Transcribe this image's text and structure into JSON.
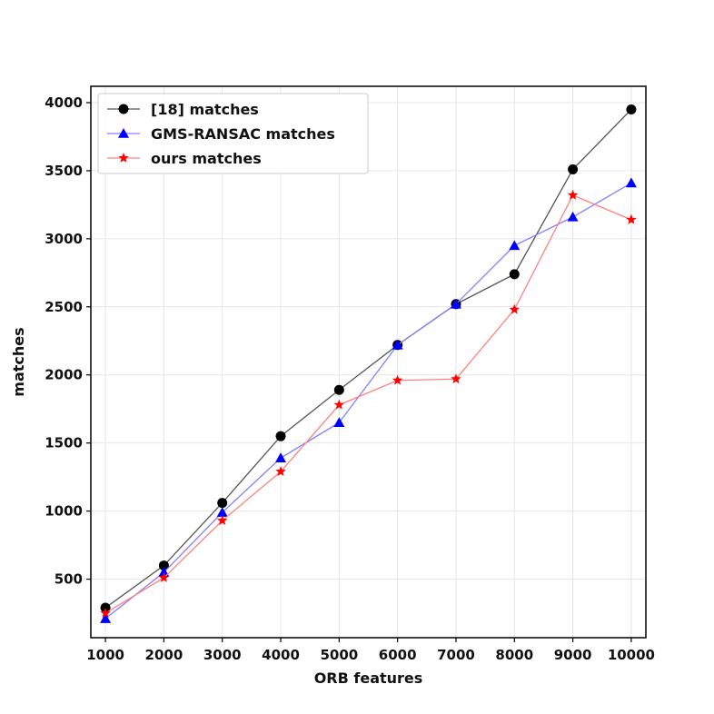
{
  "chart_data": {
    "type": "line",
    "title": "",
    "xlabel": "ORB features",
    "ylabel": "matches",
    "x": [
      1000,
      2000,
      3000,
      4000,
      5000,
      6000,
      7000,
      8000,
      9000,
      10000
    ],
    "x_tick_labels": [
      "1000",
      "2000",
      "3000",
      "4000",
      "5000",
      "6000",
      "7000",
      "8000",
      "9000",
      "10000"
    ],
    "yticks": [
      500,
      1000,
      1500,
      2000,
      2500,
      3000,
      3500,
      4000
    ],
    "y_tick_labels": [
      "500",
      "1000",
      "1500",
      "2000",
      "2500",
      "3000",
      "3500",
      "4000"
    ],
    "xlim": [
      750,
      10250
    ],
    "ylim": [
      70,
      4120
    ],
    "grid": true,
    "legend_position": "top-left",
    "series": [
      {
        "name": "[18] matches",
        "color": "#000000",
        "line_color": "#555555",
        "marker": "circle",
        "values": [
          290,
          600,
          1060,
          1550,
          1890,
          2220,
          2520,
          2740,
          3510,
          3950
        ]
      },
      {
        "name": "GMS-RANSAC matches",
        "color": "#0000ff",
        "line_color": "#8080ff",
        "marker": "triangle",
        "values": [
          210,
          550,
          990,
          1390,
          1650,
          2220,
          2520,
          2950,
          3160,
          3410
        ]
      },
      {
        "name": "ours matches",
        "color": "#ff0000",
        "line_color": "#ff8080",
        "marker": "star",
        "values": [
          250,
          510,
          930,
          1290,
          1780,
          1960,
          1970,
          2480,
          3320,
          3140
        ]
      }
    ]
  }
}
